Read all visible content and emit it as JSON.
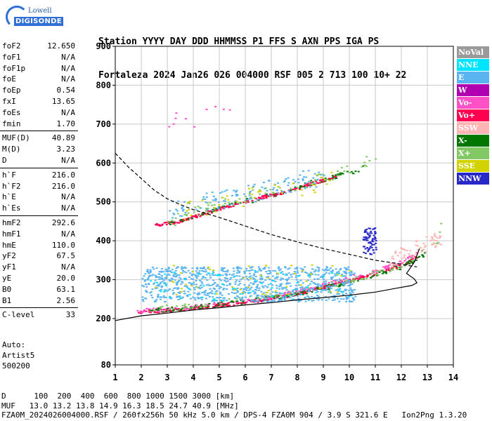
{
  "logo": {
    "line1": "Lowell",
    "line2": "DIGISONDE"
  },
  "header": {
    "labels": [
      "Station",
      "YYYY",
      "DAY",
      "DDD",
      "HHMMSS",
      "P1",
      "FFS",
      "S",
      "AXN",
      "PPS",
      "IGA",
      "PS"
    ],
    "values": [
      "Fortaleza",
      "2024",
      "Jan26",
      "026",
      "004000",
      "RSF",
      "005",
      "2",
      "713",
      "100",
      "10+",
      "22"
    ]
  },
  "params": [
    [
      [
        "foF2",
        "12.650"
      ],
      [
        "foF1",
        "N/A"
      ],
      [
        "foF1p",
        "N/A"
      ],
      [
        "foE",
        "N/A"
      ],
      [
        "foEp",
        "0.54"
      ],
      [
        "fxI",
        "13.65"
      ],
      [
        "foEs",
        "N/A"
      ],
      [
        "fmin",
        "1.70"
      ]
    ],
    [
      [
        "MUF(D)",
        "40.89"
      ],
      [
        "M(D)",
        "3.23"
      ],
      [
        "D",
        "N/A"
      ]
    ],
    [
      [
        "h`F",
        "216.0"
      ],
      [
        "h`F2",
        "216.0"
      ],
      [
        "h`E",
        "N/A"
      ],
      [
        "h`Es",
        "N/A"
      ]
    ],
    [
      [
        "hmF2",
        "292.6"
      ],
      [
        "hmF1",
        "N/A"
      ],
      [
        "hmE",
        "110.0"
      ],
      [
        "yF2",
        "67.5"
      ],
      [
        "yF1",
        "N/A"
      ],
      [
        "yE",
        "20.0"
      ],
      [
        "B0",
        "63.1"
      ],
      [
        "B1",
        "2.56"
      ]
    ],
    [
      [
        "C-level",
        "33"
      ]
    ]
  ],
  "auto": {
    "line1": "Auto:",
    "line2": "Artist5",
    "line3": "500200"
  },
  "legend": [
    {
      "label": "NoVal",
      "color": "#9a9a9a"
    },
    {
      "label": "NNE",
      "color": "#00e5ff"
    },
    {
      "label": "E",
      "color": "#5ab4f0"
    },
    {
      "label": "W",
      "color": "#b000b0"
    },
    {
      "label": "Vo-",
      "color": "#ff50c8"
    },
    {
      "label": "Vo+",
      "color": "#ff0050"
    },
    {
      "label": "SSW",
      "color": "#ffb4b4"
    },
    {
      "label": "X-",
      "color": "#007800"
    },
    {
      "label": "X+",
      "color": "#82c864"
    },
    {
      "label": "SSE",
      "color": "#d2d200"
    },
    {
      "label": "NNW",
      "color": "#2828c8"
    }
  ],
  "chart_data": {
    "type": "scatter",
    "xlim": [
      1,
      14
    ],
    "ylim": [
      80,
      900
    ],
    "xticks": [
      "1",
      "2",
      "3",
      "4",
      "5",
      "6",
      "7",
      "8",
      "9",
      "10",
      "11",
      "12",
      "13",
      "14"
    ],
    "yticks": [
      "80",
      "200",
      "300",
      "400",
      "500",
      "600",
      "700",
      "800",
      "900"
    ],
    "grid": true,
    "clusters": [
      {
        "mode": "Vo+",
        "x0": 1.8,
        "x1": 12.6,
        "points": [
          [
            1.8,
            218
          ],
          [
            3,
            222
          ],
          [
            4,
            228
          ],
          [
            5,
            236
          ],
          [
            6,
            244
          ],
          [
            7,
            252
          ],
          [
            8,
            266
          ],
          [
            9,
            282
          ],
          [
            10,
            300
          ],
          [
            11,
            318
          ],
          [
            12,
            338
          ],
          [
            12.5,
            358
          ]
        ],
        "width": 8,
        "n": 300
      },
      {
        "mode": "Vo-",
        "x0": 1.8,
        "x1": 12.6,
        "points": [
          [
            1.8,
            222
          ],
          [
            3,
            226
          ],
          [
            4,
            232
          ],
          [
            5,
            240
          ],
          [
            6,
            248
          ],
          [
            7,
            258
          ],
          [
            8,
            272
          ],
          [
            9,
            288
          ],
          [
            10,
            306
          ],
          [
            11,
            326
          ],
          [
            12,
            348
          ],
          [
            12.6,
            370
          ]
        ],
        "width": 10,
        "n": 180
      },
      {
        "mode": "X-",
        "x0": 2.3,
        "x1": 13.2,
        "points": [
          [
            2.3,
            222
          ],
          [
            4,
            230
          ],
          [
            6,
            246
          ],
          [
            8,
            266
          ],
          [
            10,
            296
          ],
          [
            11,
            314
          ],
          [
            12,
            336
          ],
          [
            13,
            370
          ],
          [
            13.2,
            380
          ]
        ],
        "width": 12,
        "n": 140
      },
      {
        "mode": "X+",
        "x0": 2.3,
        "x1": 13.5,
        "points": [
          [
            2.3,
            226
          ],
          [
            5,
            242
          ],
          [
            8,
            270
          ],
          [
            10,
            300
          ],
          [
            12,
            338
          ],
          [
            13.4,
            400
          ],
          [
            13.5,
            455
          ]
        ],
        "width": 14,
        "n": 90
      },
      {
        "mode": "E",
        "x0": 2.0,
        "x1": 10.2,
        "points": [
          [
            2,
            290
          ],
          [
            10,
            290
          ]
        ],
        "width": 90,
        "n": 900
      },
      {
        "mode": "NNE",
        "x0": 2.3,
        "x1": 10.0,
        "points": [
          [
            2.3,
            285
          ],
          [
            10,
            285
          ]
        ],
        "width": 80,
        "n": 60
      },
      {
        "mode": "SSE",
        "x0": 2.5,
        "x1": 10.0,
        "points": [
          [
            2.5,
            300
          ],
          [
            10,
            300
          ]
        ],
        "width": 80,
        "n": 50
      },
      {
        "mode": "SSW",
        "x0": 11.5,
        "x1": 13.5,
        "points": [
          [
            11.5,
            350
          ],
          [
            12.5,
            380
          ],
          [
            13.5,
            410
          ]
        ],
        "width": 40,
        "n": 60
      },
      {
        "mode": "NNW",
        "x0": 10.5,
        "x1": 11.0,
        "points": [
          [
            10.5,
            400
          ],
          [
            11,
            400
          ]
        ],
        "width": 70,
        "n": 70
      },
      {
        "mode": "Vo+",
        "x0": 2.5,
        "x1": 9.5,
        "points": [
          [
            2.5,
            442
          ],
          [
            3.5,
            452
          ],
          [
            4.5,
            474
          ],
          [
            5.5,
            494
          ],
          [
            6.5,
            512
          ],
          [
            7.5,
            526
          ],
          [
            8.5,
            548
          ],
          [
            9.5,
            568
          ]
        ],
        "width": 8,
        "n": 200
      },
      {
        "mode": "X-",
        "x0": 3,
        "x1": 10.5,
        "points": [
          [
            3,
            446
          ],
          [
            5,
            488
          ],
          [
            7,
            518
          ],
          [
            9,
            560
          ],
          [
            10.5,
            588
          ]
        ],
        "width": 14,
        "n": 70
      },
      {
        "mode": "X+",
        "x0": 3,
        "x1": 11,
        "points": [
          [
            3,
            450
          ],
          [
            5,
            500
          ],
          [
            7,
            530
          ],
          [
            9,
            565
          ],
          [
            11,
            612
          ]
        ],
        "width": 30,
        "n": 80
      },
      {
        "mode": "E",
        "x0": 3,
        "x1": 9,
        "points": [
          [
            3,
            480
          ],
          [
            6,
            520
          ],
          [
            9,
            570
          ]
        ],
        "width": 50,
        "n": 120
      },
      {
        "mode": "SSE",
        "x0": 3.5,
        "x1": 9.5,
        "points": [
          [
            3.5,
            480
          ],
          [
            9.5,
            560
          ]
        ],
        "width": 50,
        "n": 40
      },
      {
        "mode": "Vo-",
        "x0": 2.8,
        "x1": 6.5,
        "points": [
          [
            2.8,
            700
          ],
          [
            6.5,
            740
          ]
        ],
        "width": 50,
        "n": 10
      }
    ],
    "curves": [
      {
        "name": "profile",
        "style": "solid",
        "x": [
          1,
          2,
          3,
          4,
          5,
          6,
          7,
          8,
          9,
          10,
          11,
          11.8,
          12.4,
          12.6,
          12.5,
          12.2,
          12.5,
          12.7
        ],
        "y": [
          195,
          207,
          214,
          222,
          228,
          235,
          241,
          248,
          254,
          260,
          268,
          278,
          285,
          292,
          302,
          316,
          345,
          380
        ]
      },
      {
        "name": "virtual-height",
        "style": "dashed",
        "x": [
          1,
          1.5,
          2,
          2.5,
          3,
          3.5,
          4,
          5,
          6,
          7,
          8,
          9,
          10,
          11,
          11.5,
          12,
          12.4,
          12.6
        ],
        "y": [
          625,
          590,
          560,
          530,
          508,
          493,
          480,
          460,
          438,
          416,
          397,
          380,
          365,
          350,
          345,
          340,
          335,
          333
        ]
      }
    ]
  },
  "footer": {
    "line1": "D      100  200  400  600  800 1000 1500 3000 [km]",
    "line2": "MUF   13.0 13.2 13.8 14.9 16.3 18.5 24.7 40.9 [MHz]",
    "line3": "FZA0M_2024026004000.RSF / 260fx256h 50 kHz 5.0 km / DPS-4 FZA0M 904 / 3.9 S 321.6 E   Ion2Png 1.3.20"
  }
}
